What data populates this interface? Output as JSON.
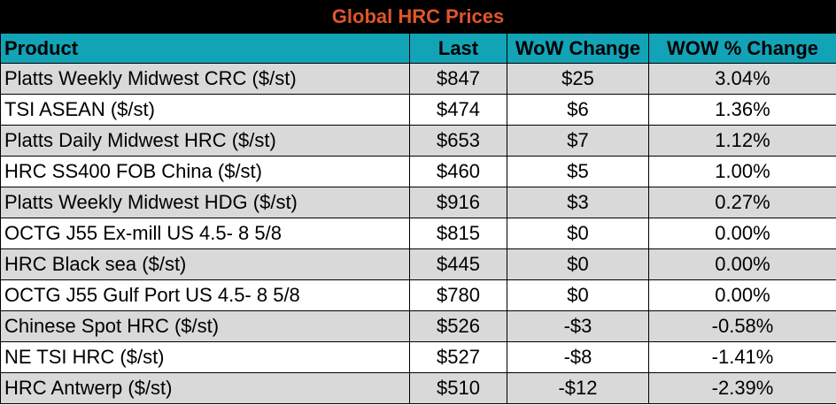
{
  "title": "Global HRC Prices",
  "colors": {
    "title_bg": "#000000",
    "title_text": "#e0552a",
    "header_bg": "#12a3b7",
    "row_shade": "#d9d9d9",
    "row_plain": "#ffffff"
  },
  "columns": [
    "Product",
    "Last",
    "WoW Change",
    "WOW % Change"
  ],
  "rows": [
    {
      "product": "Platts Weekly Midwest CRC ($/st)",
      "last": "$847",
      "wow": "$25",
      "pct": "3.04%"
    },
    {
      "product": "TSI ASEAN ($/st)",
      "last": "$474",
      "wow": "$6",
      "pct": "1.36%"
    },
    {
      "product": "Platts Daily Midwest HRC ($/st)",
      "last": "$653",
      "wow": "$7",
      "pct": "1.12%"
    },
    {
      "product": "HRC SS400 FOB China ($/st)",
      "last": "$460",
      "wow": "$5",
      "pct": "1.00%"
    },
    {
      "product": "Platts Weekly Midwest HDG ($/st)",
      "last": "$916",
      "wow": "$3",
      "pct": "0.27%"
    },
    {
      "product": "OCTG J55 Ex-mill US 4.5- 8 5/8",
      "last": "$815",
      "wow": "$0",
      "pct": "0.00%"
    },
    {
      "product": "HRC Black sea ($/st)",
      "last": "$445",
      "wow": "$0",
      "pct": "0.00%"
    },
    {
      "product": "OCTG J55 Gulf Port US 4.5- 8 5/8",
      "last": "$780",
      "wow": "$0",
      "pct": "0.00%"
    },
    {
      "product": "Chinese Spot HRC ($/st)",
      "last": "$526",
      "wow": "-$3",
      "pct": "-0.58%"
    },
    {
      "product": "NE TSI HRC ($/st)",
      "last": "$527",
      "wow": "-$8",
      "pct": "-1.41%"
    },
    {
      "product": "HRC Antwerp ($/st)",
      "last": "$510",
      "wow": "-$12",
      "pct": "-2.39%"
    }
  ]
}
